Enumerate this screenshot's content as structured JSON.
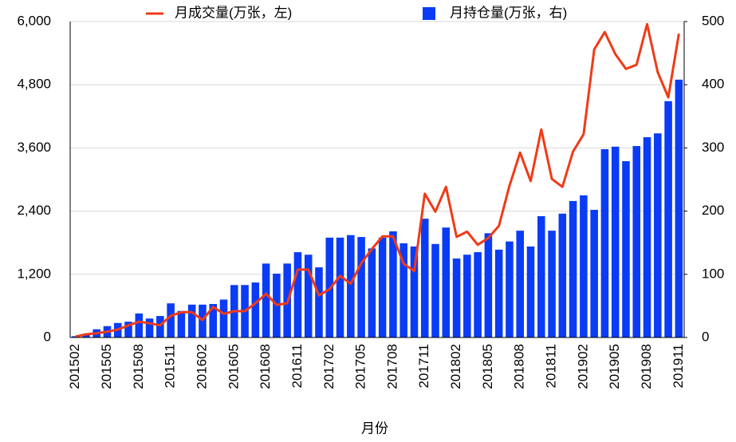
{
  "chart_data": {
    "type": "bar-line",
    "x_label": "月份",
    "categories": [
      "201502",
      null,
      null,
      "201505",
      null,
      null,
      "201508",
      null,
      null,
      "201511",
      null,
      null,
      "201602",
      null,
      null,
      "201605",
      null,
      null,
      "201608",
      null,
      null,
      "201611",
      null,
      null,
      "201702",
      null,
      null,
      "201705",
      null,
      null,
      "201708",
      null,
      null,
      "201711",
      null,
      null,
      "201802",
      null,
      null,
      "201805",
      null,
      null,
      "201808",
      null,
      null,
      "201811",
      null,
      null,
      "201902",
      null,
      null,
      "201905",
      null,
      null,
      "201908",
      null,
      null,
      "201911"
    ],
    "series": [
      {
        "name": "月成交量(万张，左)",
        "type": "line",
        "axis": "y",
        "color": "#f03a17",
        "values": [
          15,
          60,
          80,
          110,
          150,
          230,
          300,
          270,
          230,
          410,
          480,
          480,
          330,
          580,
          450,
          500,
          500,
          650,
          830,
          620,
          650,
          1290,
          1290,
          800,
          920,
          1170,
          1020,
          1410,
          1680,
          1920,
          1920,
          1400,
          1260,
          2730,
          2390,
          2860,
          1910,
          2010,
          1760,
          1890,
          2120,
          2880,
          3510,
          2970,
          3950,
          3010,
          2860,
          3530,
          3860,
          5470,
          5800,
          5380,
          5100,
          5180,
          5950,
          5040,
          4560,
          5770
        ]
      },
      {
        "name": "月持仓量(万张，右)",
        "type": "bar",
        "axis": "y2",
        "color": "#0a3cf5",
        "values": [
          2,
          5,
          13,
          18,
          23,
          25,
          38,
          30,
          34,
          54,
          42,
          52,
          52,
          53,
          60,
          83,
          83,
          87,
          117,
          101,
          117,
          135,
          131,
          111,
          158,
          158,
          162,
          159,
          141,
          158,
          168,
          149,
          144,
          188,
          148,
          174,
          125,
          131,
          135,
          165,
          139,
          152,
          169,
          144,
          192,
          169,
          196,
          216,
          225,
          202,
          298,
          302,
          279,
          303,
          317,
          323,
          374,
          408
        ]
      }
    ],
    "ylim": [
      0,
      6000
    ],
    "yticks": [
      0,
      {
        "value": 1200,
        "label": "1,200"
      },
      {
        "value": 2400,
        "label": "2,400"
      },
      {
        "value": 3600,
        "label": "3,600"
      },
      {
        "value": 4800,
        "label": "4,800"
      },
      {
        "value": 6000,
        "label": "6,000"
      }
    ],
    "y2lim": [
      0,
      500
    ],
    "y2ticks": [
      0,
      100,
      200,
      300,
      400,
      500
    ],
    "grid": true,
    "legend": "top"
  }
}
